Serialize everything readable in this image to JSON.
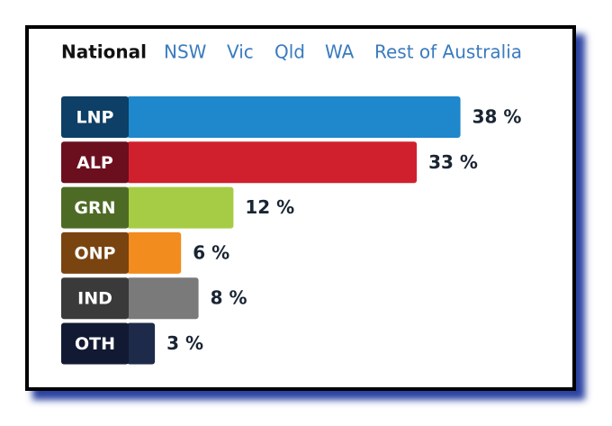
{
  "chart_data": {
    "type": "bar",
    "orientation": "horizontal",
    "tabs": [
      "National",
      "NSW",
      "Vic",
      "Qld",
      "WA",
      "Rest of Australia"
    ],
    "categories": [
      "LNP",
      "ALP",
      "GRN",
      "ONP",
      "IND",
      "OTH"
    ],
    "values": [
      38,
      33,
      12,
      6,
      8,
      3
    ],
    "value_labels": [
      "38 %",
      "33 %",
      "12 %",
      "6 %",
      "8 %",
      "3 %"
    ],
    "colors": [
      "#1f87cc",
      "#d0202e",
      "#a6cc45",
      "#f28c1e",
      "#7a7a7a",
      "#1e2a4a"
    ],
    "label_colors": [
      "#0e3f66",
      "#6b0f1e",
      "#4e6b26",
      "#7a4410",
      "#3a3a3a",
      "#121a33"
    ]
  }
}
